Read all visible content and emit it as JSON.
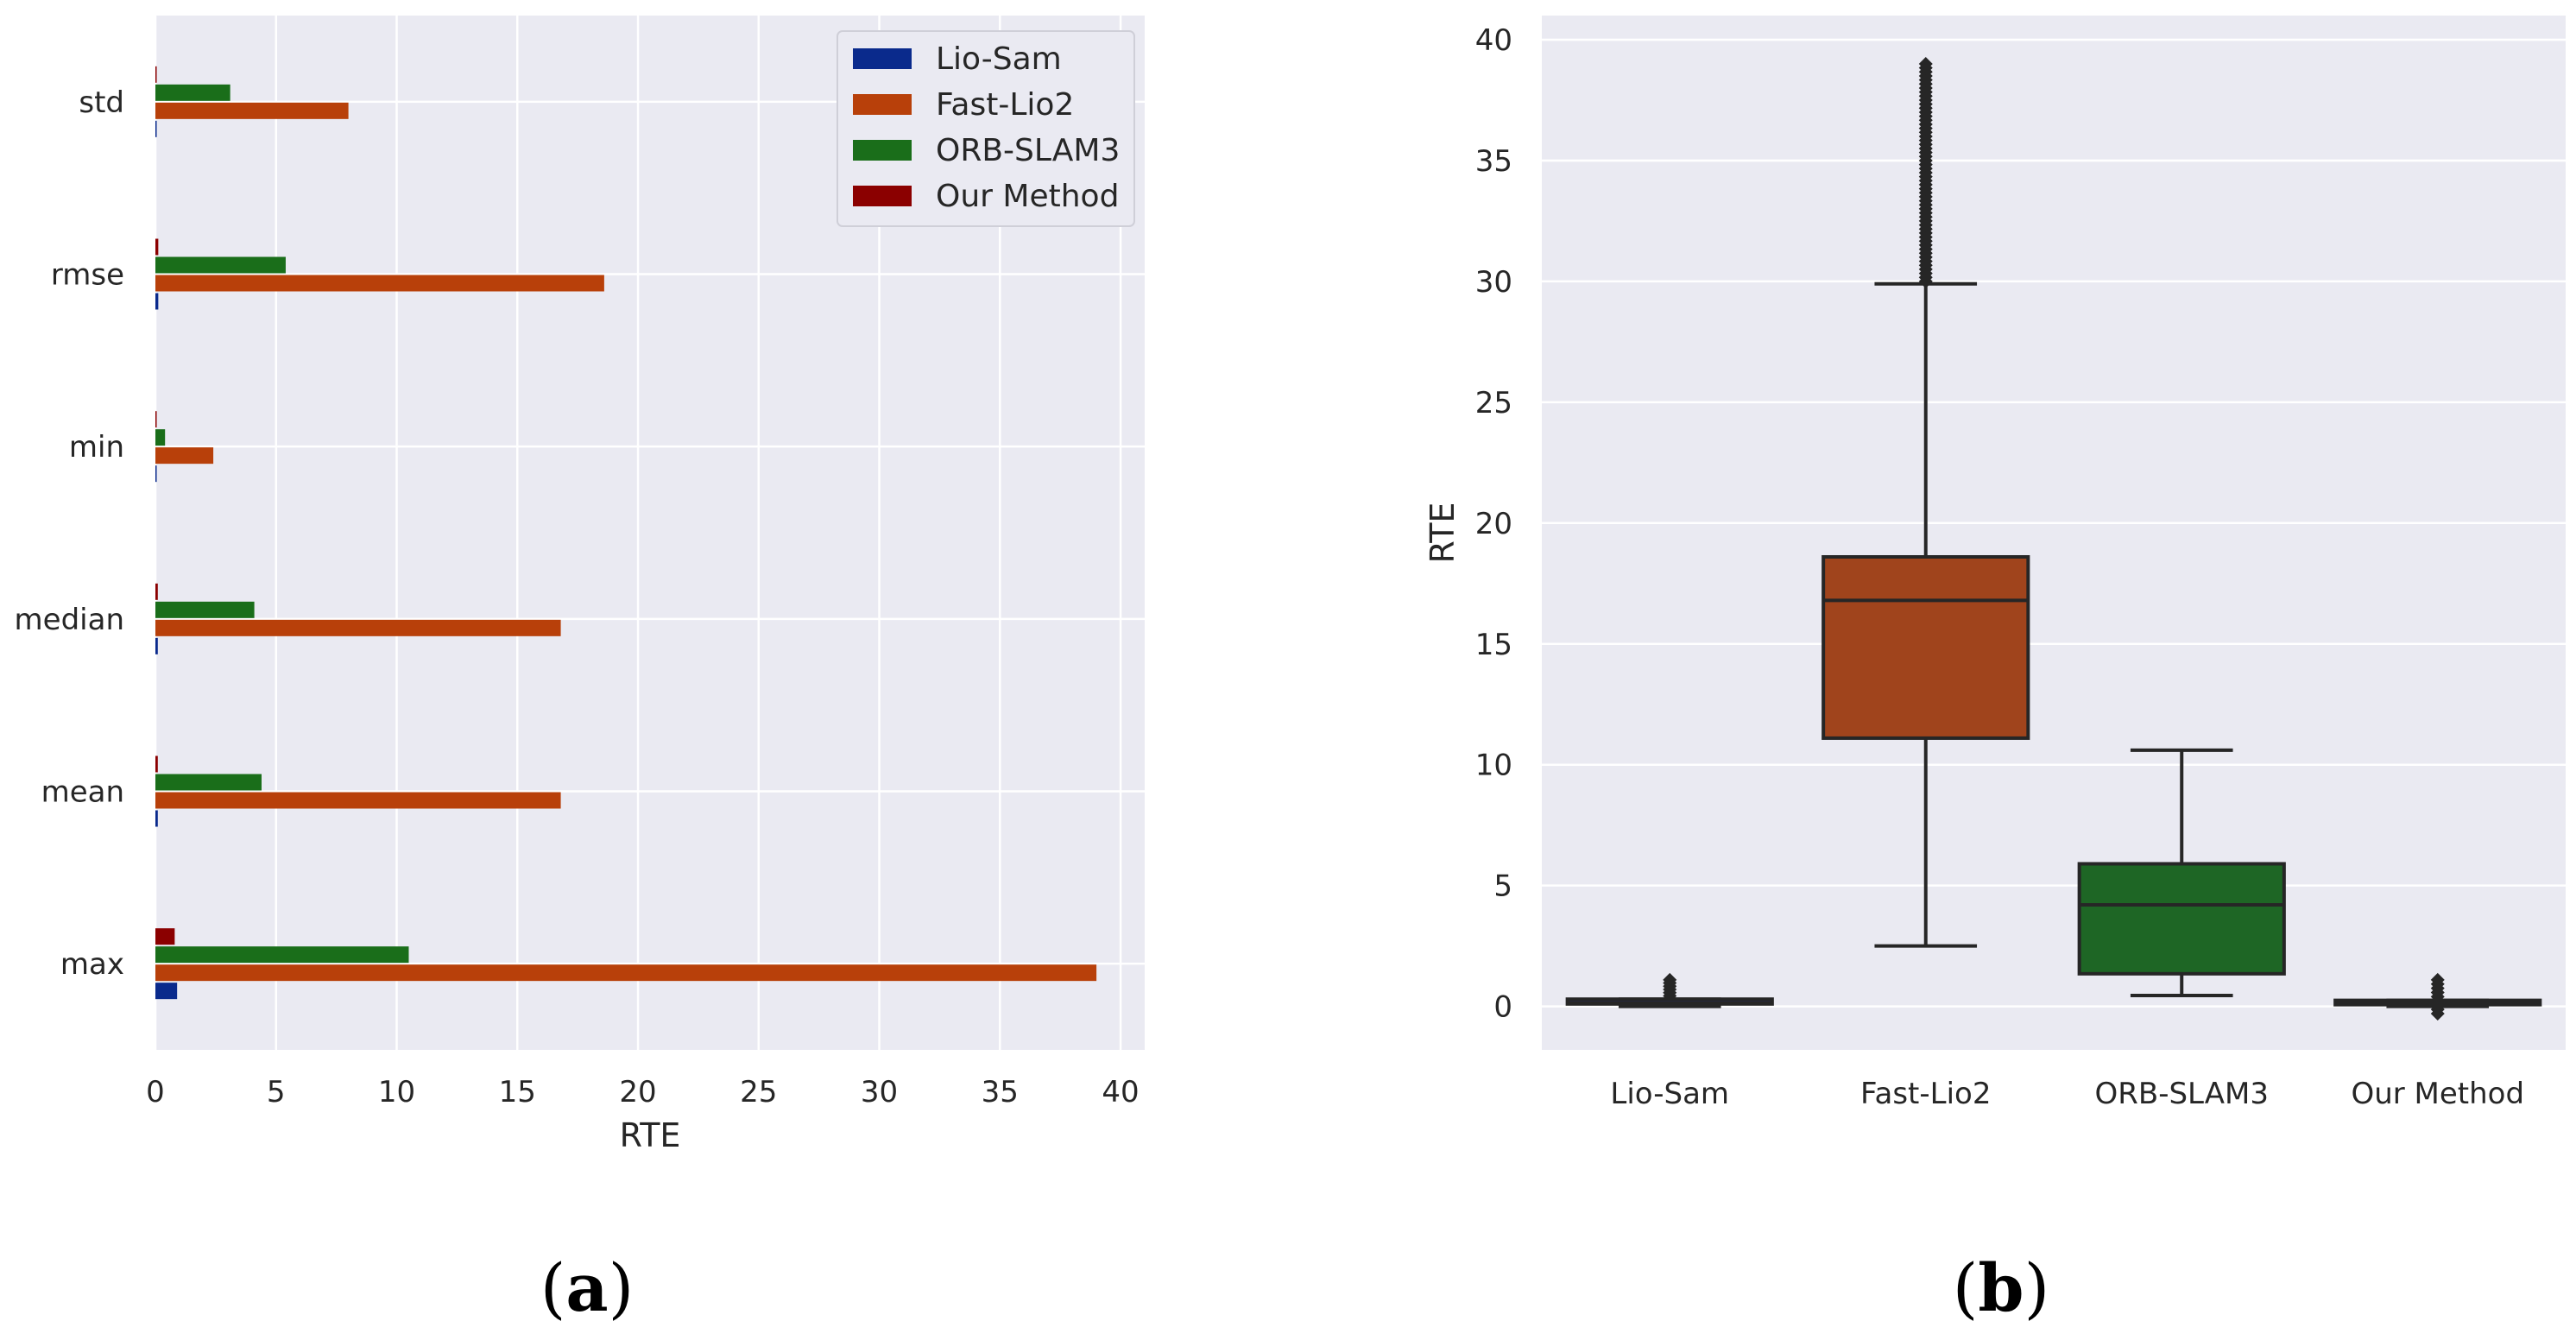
{
  "chart_data": [
    {
      "type": "bar",
      "orientation": "horizontal",
      "panel_label": "a",
      "categories": [
        "std",
        "rmse",
        "min",
        "median",
        "mean",
        "max"
      ],
      "series": [
        {
          "name": "Lio-Sam",
          "color": "#0a2a8c",
          "values": [
            0.05,
            0.12,
            0.01,
            0.1,
            0.1,
            0.9
          ]
        },
        {
          "name": "Fast-Lio2",
          "color": "#b8400a",
          "values": [
            8.0,
            18.6,
            2.4,
            16.8,
            16.8,
            39.0
          ]
        },
        {
          "name": "ORB-SLAM3",
          "color": "#1a6e1a",
          "values": [
            3.1,
            5.4,
            0.4,
            4.1,
            4.4,
            10.5
          ]
        },
        {
          "name": "Our Method",
          "color": "#8b0000",
          "values": [
            0.05,
            0.12,
            0.01,
            0.1,
            0.1,
            0.8
          ]
        }
      ],
      "xlabel": "RTE",
      "ylabel": "",
      "xlim": [
        0,
        41
      ],
      "xticks": [
        "0",
        "5",
        "10",
        "15",
        "20",
        "25",
        "30",
        "35",
        "40"
      ],
      "legend": "top-right",
      "grid": true
    },
    {
      "type": "box",
      "panel_label": "b",
      "categories": [
        "Lio-Sam",
        "Fast-Lio2",
        "ORB-SLAM3",
        "Our Method"
      ],
      "colors": [
        "#1f2a8c",
        "#a0441c",
        "#1e6625",
        "#8b1a1a"
      ],
      "boxes": [
        {
          "whisker_low": 0.0,
          "q1": 0.1,
          "median": 0.15,
          "q3": 0.3,
          "whisker_high": 0.3,
          "outlier_range": [
            0.3,
            1.1
          ]
        },
        {
          "whisker_low": 2.5,
          "q1": 11.1,
          "median": 16.8,
          "q3": 18.6,
          "whisker_high": 29.9,
          "outlier_range": [
            30.0,
            39.0
          ]
        },
        {
          "whisker_low": 0.45,
          "q1": 1.35,
          "median": 4.2,
          "q3": 5.9,
          "whisker_high": 10.6,
          "outlier_range": null
        },
        {
          "whisker_low": 0.0,
          "q1": 0.1,
          "median": 0.15,
          "q3": 0.25,
          "whisker_high": 0.25,
          "outlier_range": [
            -0.3,
            1.1
          ]
        }
      ],
      "xlabel": "",
      "ylabel": "RTE",
      "ylim": [
        -1.8,
        41
      ],
      "yticks": [
        "0",
        "5",
        "10",
        "15",
        "20",
        "25",
        "30",
        "35",
        "40"
      ],
      "grid": true
    }
  ]
}
